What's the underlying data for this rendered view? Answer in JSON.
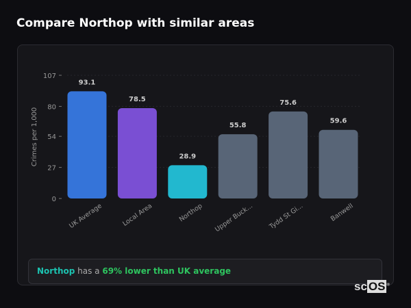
{
  "title": "Compare Northop with similar areas",
  "chart_data": {
    "type": "bar",
    "categories": [
      "UK Average",
      "Local Area",
      "Northop",
      "Upper Buck...",
      "Tydd St Gi...",
      "Banwell"
    ],
    "values": [
      93.1,
      78.5,
      28.9,
      55.8,
      75.6,
      59.6
    ],
    "value_labels": [
      "93.1",
      "78.5",
      "28.9",
      "55.8",
      "75.6",
      "59.6"
    ],
    "colors": [
      "#3574d9",
      "#7a4fd3",
      "#22b8cf",
      "#586577",
      "#586577",
      "#586577"
    ],
    "ylabel": "Crimes per 1,000",
    "yticks": [
      0,
      27,
      54,
      80,
      107
    ],
    "ytick_labels": [
      "0",
      "27",
      "54",
      "80",
      "107"
    ],
    "ylim": [
      0,
      107
    ],
    "grid": true
  },
  "summary": {
    "area": "Northop",
    "middle": " has a ",
    "stat": "69% lower than UK average"
  },
  "logo": {
    "a": "sc",
    "b": "OS",
    "mark": "®"
  }
}
